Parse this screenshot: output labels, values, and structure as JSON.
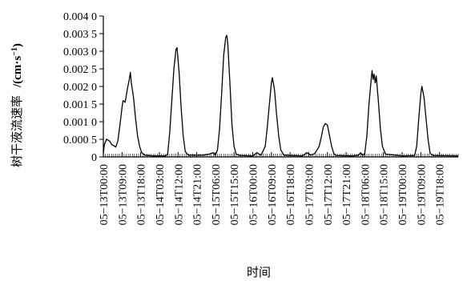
{
  "chart_data": {
    "type": "line",
    "title": "",
    "xlabel": "时间",
    "ylabel_text": "树干液流速率",
    "ylabel_unit": "/(cm·s",
    "ylabel_exp": "−1",
    "ylabel_close": ")",
    "ylim": [
      0,
      0.004
    ],
    "y_ticks": [
      0,
      0.0005,
      0.001,
      0.0015,
      0.002,
      0.0025,
      0.003,
      0.0035,
      0.004
    ],
    "y_tick_labels": [
      "0",
      "0.000 5",
      "0.001 0",
      "0.001 5",
      "0.002 0",
      "0.002 5",
      "0.003 0",
      "0.003 5",
      "0.004 0"
    ],
    "x_unit": "hours since 05-13T00:00",
    "xlim": [
      0,
      171
    ],
    "x_ticks": [
      0,
      9,
      18,
      27,
      36,
      45,
      54,
      63,
      72,
      81,
      90,
      99,
      108,
      117,
      126,
      135,
      144,
      153,
      162
    ],
    "x_tick_labels": [
      "05−13T00:00",
      "05−13T09:00",
      "05−13T18:00",
      "05−14T03:00",
      "05−14T12:00",
      "05−14T21:00",
      "05−15T06:00",
      "05−15T15:00",
      "05−16T00:00",
      "05−16T09:00",
      "05−16T18:00",
      "05−17T03:00",
      "05−17T12:00",
      "05−17T21:00",
      "05−18T06:00",
      "05−18T15:00",
      "05−19T00:00",
      "05−19T09:00",
      "05−19T18:00"
    ],
    "grid": false,
    "series": [
      {
        "name": "",
        "color": "#000000",
        "points": [
          [
            0,
            0.0001
          ],
          [
            0.5,
            0.00035
          ],
          [
            1.5,
            0.0005
          ],
          [
            3,
            0.00045
          ],
          [
            4,
            0.00035
          ],
          [
            5,
            0.00032
          ],
          [
            6,
            0.00028
          ],
          [
            7,
            0.00045
          ],
          [
            8,
            0.0009
          ],
          [
            9,
            0.0014
          ],
          [
            9.5,
            0.0016
          ],
          [
            10.5,
            0.00155
          ],
          [
            11.5,
            0.0019
          ],
          [
            12.5,
            0.0022
          ],
          [
            13,
            0.0024
          ],
          [
            13.5,
            0.0021
          ],
          [
            14.5,
            0.0017
          ],
          [
            15.5,
            0.0011
          ],
          [
            16.5,
            0.0006
          ],
          [
            17.5,
            0.0003
          ],
          [
            18.5,
            0.00012
          ],
          [
            20,
            5e-05
          ],
          [
            24,
            3e-05
          ],
          [
            30,
            3e-05
          ],
          [
            31,
            8e-05
          ],
          [
            32,
            0.0007
          ],
          [
            33,
            0.0016
          ],
          [
            34,
            0.0025
          ],
          [
            35,
            0.00305
          ],
          [
            35.5,
            0.0031
          ],
          [
            36.5,
            0.0024
          ],
          [
            37.5,
            0.0014
          ],
          [
            38.5,
            0.0006
          ],
          [
            39.5,
            0.00015
          ],
          [
            41,
            5e-05
          ],
          [
            48,
            5e-05
          ],
          [
            51,
            8e-05
          ],
          [
            53,
            0.00012
          ],
          [
            54,
            5e-05
          ],
          [
            55,
            0.0002
          ],
          [
            56,
            0.0008
          ],
          [
            57,
            0.0018
          ],
          [
            58,
            0.0029
          ],
          [
            59,
            0.0034
          ],
          [
            59.5,
            0.00345
          ],
          [
            60,
            0.0032
          ],
          [
            61,
            0.0021
          ],
          [
            62,
            0.0009
          ],
          [
            63,
            0.0003
          ],
          [
            64,
            8e-05
          ],
          [
            66,
            4e-05
          ],
          [
            72,
            3e-05
          ],
          [
            74,
            0.00012
          ],
          [
            76,
            5e-05
          ],
          [
            78,
            0.0003
          ],
          [
            79,
            0.00085
          ],
          [
            80,
            0.0015
          ],
          [
            81,
            0.0021
          ],
          [
            81.5,
            0.00225
          ],
          [
            82.5,
            0.0019
          ],
          [
            83.5,
            0.0012
          ],
          [
            84.5,
            0.0006
          ],
          [
            85.5,
            0.0002
          ],
          [
            87,
            5e-05
          ],
          [
            96,
            3e-05
          ],
          [
            98,
            0.00012
          ],
          [
            100,
            5e-05
          ],
          [
            102,
            0.0001
          ],
          [
            104,
            0.0003
          ],
          [
            105,
            0.00055
          ],
          [
            106,
            0.00085
          ],
          [
            107,
            0.00095
          ],
          [
            108,
            0.0009
          ],
          [
            109,
            0.0006
          ],
          [
            110,
            0.0003
          ],
          [
            111,
            0.0001
          ],
          [
            112,
            4e-05
          ],
          [
            120,
            3e-05
          ],
          [
            123,
            5e-05
          ],
          [
            124,
            0.00012
          ],
          [
            125,
            4e-05
          ],
          [
            126,
            0.0001
          ],
          [
            127,
            0.0006
          ],
          [
            128,
            0.0015
          ],
          [
            129,
            0.00215
          ],
          [
            129.5,
            0.00245
          ],
          [
            130,
            0.0022
          ],
          [
            130.5,
            0.00235
          ],
          [
            131,
            0.0021
          ],
          [
            131.5,
            0.0023
          ],
          [
            132.5,
            0.0016
          ],
          [
            133.5,
            0.0008
          ],
          [
            134.5,
            0.0003
          ],
          [
            136,
            8e-05
          ],
          [
            144,
            3e-05
          ],
          [
            150,
            4e-05
          ],
          [
            151,
            0.0003
          ],
          [
            152,
            0.0011
          ],
          [
            153,
            0.0018
          ],
          [
            153.5,
            0.002
          ],
          [
            154.5,
            0.0017
          ],
          [
            155.5,
            0.0011
          ],
          [
            156.5,
            0.0005
          ],
          [
            157.5,
            0.0001
          ],
          [
            159,
            4e-05
          ],
          [
            171,
            3e-05
          ]
        ]
      }
    ]
  }
}
